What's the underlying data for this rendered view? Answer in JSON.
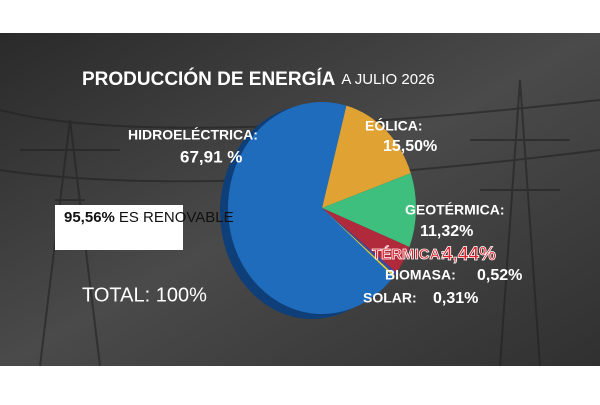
{
  "chart_data": {
    "type": "pie",
    "title": "PRODUCCIÓN DE ENERGÍA",
    "subtitle": "A JULIO 2026",
    "categories": [
      "EÓLICA:",
      "GEOTÉRMICA:",
      "TÉRMICA:",
      "BIOMASA:",
      "SOLAR:",
      "HIDROELÉCTRICA:"
    ],
    "values": [
      15.5,
      11.32,
      4.44,
      0.52,
      0.31,
      67.91
    ],
    "value_labels": [
      "15,50%",
      "11,32%",
      "4,44%",
      "0,52%",
      "0,31%",
      "67,91 %"
    ],
    "colors": [
      "#e0a232",
      "#3fbf7d",
      "#b02a3c",
      "#3b4aa3",
      "#e6d42c",
      "#1f6cbd"
    ],
    "annotations": [
      "95,56%",
      "ES RENOVABLE",
      "TOTAL: 100%"
    ]
  }
}
